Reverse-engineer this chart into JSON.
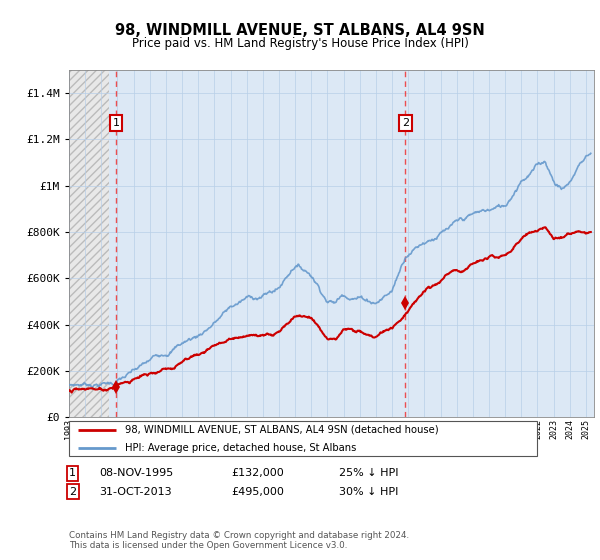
{
  "title": "98, WINDMILL AVENUE, ST ALBANS, AL4 9SN",
  "subtitle": "Price paid vs. HM Land Registry's House Price Index (HPI)",
  "hpi_label": "HPI: Average price, detached house, St Albans",
  "price_label": "98, WINDMILL AVENUE, ST ALBANS, AL4 9SN (detached house)",
  "footer": "Contains HM Land Registry data © Crown copyright and database right 2024.\nThis data is licensed under the Open Government Licence v3.0.",
  "ylim": [
    0,
    1500000
  ],
  "xlim_start": 1993.0,
  "xlim_end": 2025.5,
  "sale1_x": 1995.92,
  "sale1_y": 132000,
  "sale2_x": 2013.83,
  "sale2_y": 495000,
  "price_color": "#cc0000",
  "hpi_color": "#6699cc",
  "hatch_bg": "#e0e0e0",
  "grid_color": "#b8cfe8",
  "bg_color": "#dce8f5",
  "yticks": [
    0,
    200000,
    400000,
    600000,
    800000,
    1000000,
    1200000,
    1400000
  ],
  "ytick_labels": [
    "£0",
    "£200K",
    "£400K",
    "£600K",
    "£800K",
    "£1M",
    "£1.2M",
    "£1.4M"
  ]
}
